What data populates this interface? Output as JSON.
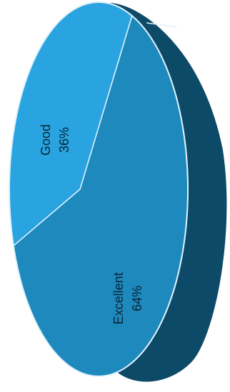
{
  "chart_data": {
    "type": "pie",
    "title": "",
    "three_d": true,
    "rotation": "rotated 90 degrees counter-clockwise",
    "legend": "none",
    "slices": [
      {
        "label": "Good",
        "value": 36,
        "value_label": "36%",
        "color": "#29a4e0"
      },
      {
        "label": "Excellent",
        "value": 64,
        "value_label": "64%",
        "color": "#1d89bd"
      }
    ],
    "side_color": "#0d4a68",
    "edge_color": "#dff2fb"
  }
}
